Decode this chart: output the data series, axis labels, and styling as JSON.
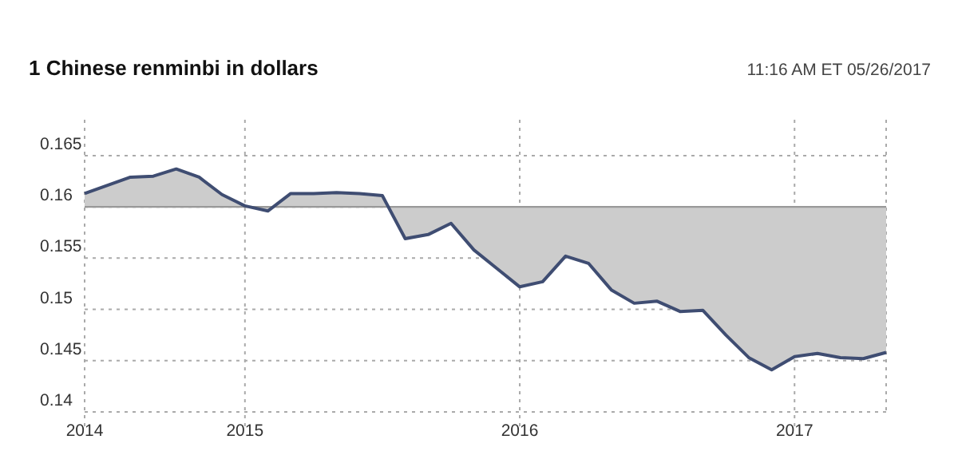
{
  "chart_data": {
    "type": "line",
    "title": "1 Chinese renminbi in dollars",
    "subtitle": "11:16 AM ET  05/26/2017",
    "categories": [
      "2014",
      null,
      null,
      null,
      null,
      null,
      null,
      "2015",
      null,
      null,
      null,
      null,
      null,
      null,
      null,
      null,
      null,
      null,
      null,
      "2016",
      null,
      null,
      null,
      null,
      null,
      null,
      null,
      null,
      null,
      null,
      null,
      "2017",
      null,
      null,
      null,
      null
    ],
    "series": [
      {
        "color": "#3f4d72",
        "upper": [
          0.16,
          0.16,
          0.16,
          0.16,
          0.16,
          0.16,
          0.16,
          0.16,
          0.16,
          0.16,
          0.16,
          0.16,
          0.16,
          0.16,
          0.16,
          0.16,
          0.16,
          0.16,
          0.16,
          0.16,
          0.16,
          0.16,
          0.16,
          0.16,
          0.16,
          0.16,
          0.16,
          0.16,
          0.16,
          0.16,
          0.16,
          0.16,
          0.16,
          0.16,
          0.16,
          0.16
        ],
        "lower": [
          0.1613,
          0.1621,
          0.1629,
          0.163,
          0.1637,
          0.1629,
          0.1612,
          0.1601,
          0.1596,
          0.1613,
          0.1613,
          0.1614,
          0.1613,
          0.1611,
          0.1569,
          0.1573,
          0.1584,
          0.1558,
          0.154,
          0.1522,
          0.1527,
          0.1552,
          0.1545,
          0.1519,
          0.1506,
          0.1508,
          0.1498,
          0.1499,
          0.1475,
          0.1453,
          0.1441,
          0.1454,
          0.1457,
          0.1453,
          0.1452,
          0.1458
        ],
        "values": [
          0.1613,
          0.1621,
          0.1629,
          0.163,
          0.1637,
          0.1629,
          0.1612,
          0.1601,
          0.1596,
          0.1613,
          0.1613,
          0.1614,
          0.1613,
          0.1611,
          0.1569,
          0.1573,
          0.1584,
          0.1558,
          0.154,
          0.1522,
          0.1527,
          0.1552,
          0.1545,
          0.1519,
          0.1506,
          0.1508,
          0.1498,
          0.1499,
          0.1475,
          0.1453,
          0.1441,
          0.1454,
          0.1457,
          0.1453,
          0.1452,
          0.1458
        ]
      }
    ],
    "ylim": [
      0.14,
      0.1685
    ],
    "yticks": [
      0.14,
      0.145,
      0.15,
      0.155,
      0.16,
      0.165
    ],
    "ref_lines": [
      {
        "axis": "y",
        "value": 0.16,
        "color": "#999999"
      }
    ],
    "grid": true
  }
}
